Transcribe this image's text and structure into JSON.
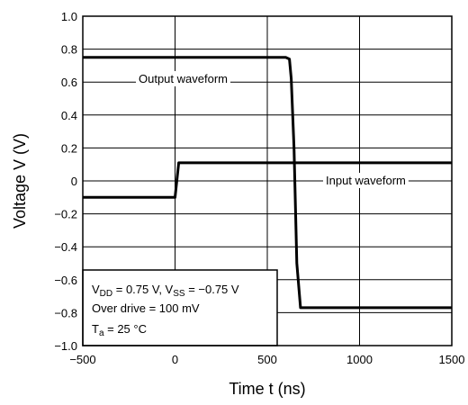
{
  "chart_data": {
    "type": "line",
    "xlabel": "Time   t   (ns)",
    "ylabel": "Voltage   V   (V)",
    "xlim": [
      -500,
      1500
    ],
    "ylim": [
      -1.0,
      1.0
    ],
    "x_ticks": [
      -500,
      0,
      500,
      1000,
      1500
    ],
    "x_tick_labels": [
      "−500",
      "0",
      "500",
      "1000",
      "1500"
    ],
    "y_ticks": [
      1.0,
      0.8,
      0.6,
      0.4,
      0.2,
      0,
      -0.2,
      -0.4,
      -0.6,
      -0.8,
      -1.0
    ],
    "y_tick_labels": [
      "1.0",
      "0.8",
      "0.6",
      "0.4",
      "0.2",
      "0",
      "−0.2",
      "−0.4",
      "−0.6",
      "−0.8",
      "−1.0"
    ],
    "grid": true,
    "series": [
      {
        "name": "Output waveform",
        "x": [
          -500,
          600,
          620,
          630,
          645,
          660,
          680,
          1500
        ],
        "y": [
          0.75,
          0.75,
          0.74,
          0.62,
          0.2,
          -0.5,
          -0.77,
          -0.77
        ]
      },
      {
        "name": "Input waveform",
        "x": [
          -500,
          0,
          20,
          1500
        ],
        "y": [
          -0.1,
          -0.1,
          0.11,
          0.11
        ]
      }
    ],
    "conditions": {
      "line1": {
        "a": "V",
        "a_sub": "DD",
        "b": " = 0.75 V, V",
        "b_sub": "SS",
        "c": " = −0.75 V"
      },
      "line2": "Over drive = 100 mV",
      "line3": {
        "a": "T",
        "a_sub": "a",
        "b": " = 25 °C"
      }
    }
  }
}
